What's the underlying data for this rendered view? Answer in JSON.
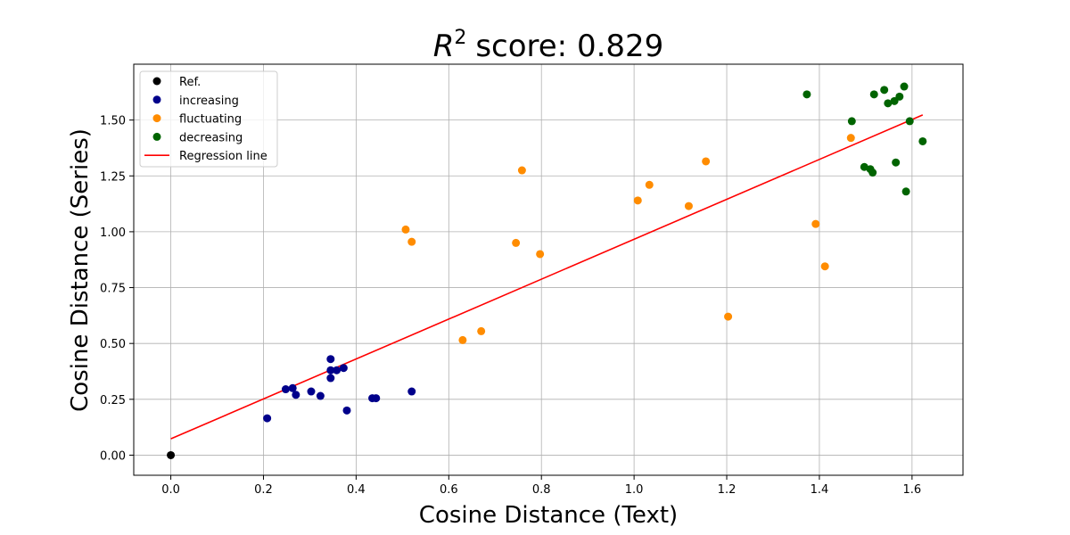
{
  "chart_data": {
    "type": "scatter",
    "title": "score: 0.829",
    "title_math": "R",
    "title_exponent": "2",
    "xlabel": "Cosine Distance (Text)",
    "ylabel": "Cosine Distance (Series)",
    "xlim": [
      -0.08,
      1.71
    ],
    "ylim": [
      -0.09,
      1.75
    ],
    "x_ticks": [
      "0.0",
      "0.2",
      "0.4",
      "0.6",
      "0.8",
      "1.0",
      "1.2",
      "1.4",
      "1.6"
    ],
    "y_ticks": [
      "0.00",
      "0.25",
      "0.50",
      "0.75",
      "1.00",
      "1.25",
      "1.50"
    ],
    "grid": true,
    "legend_position": "top-left",
    "series": [
      {
        "name": "Ref.",
        "color": "#000000",
        "points": [
          [
            0.0,
            0.0
          ]
        ]
      },
      {
        "name": "increasing",
        "color": "#00008b",
        "points": [
          [
            0.208,
            0.165
          ],
          [
            0.248,
            0.295
          ],
          [
            0.263,
            0.3
          ],
          [
            0.27,
            0.27
          ],
          [
            0.303,
            0.285
          ],
          [
            0.323,
            0.265
          ],
          [
            0.345,
            0.43
          ],
          [
            0.345,
            0.38
          ],
          [
            0.345,
            0.345
          ],
          [
            0.358,
            0.38
          ],
          [
            0.373,
            0.39
          ],
          [
            0.38,
            0.2
          ],
          [
            0.435,
            0.255
          ],
          [
            0.443,
            0.255
          ],
          [
            0.52,
            0.285
          ]
        ]
      },
      {
        "name": "fluctuating",
        "color": "#ff8c00",
        "points": [
          [
            0.507,
            1.01
          ],
          [
            0.52,
            0.955
          ],
          [
            0.63,
            0.515
          ],
          [
            0.67,
            0.555
          ],
          [
            0.745,
            0.95
          ],
          [
            0.758,
            1.275
          ],
          [
            0.797,
            0.9
          ],
          [
            1.008,
            1.14
          ],
          [
            1.033,
            1.21
          ],
          [
            1.118,
            1.115
          ],
          [
            1.155,
            1.315
          ],
          [
            1.203,
            0.62
          ],
          [
            1.392,
            1.035
          ],
          [
            1.412,
            0.845
          ],
          [
            1.468,
            1.42
          ]
        ]
      },
      {
        "name": "decreasing",
        "color": "#006400",
        "points": [
          [
            1.373,
            1.615
          ],
          [
            1.47,
            1.495
          ],
          [
            1.497,
            1.29
          ],
          [
            1.51,
            1.28
          ],
          [
            1.515,
            1.265
          ],
          [
            1.518,
            1.615
          ],
          [
            1.54,
            1.635
          ],
          [
            1.548,
            1.575
          ],
          [
            1.562,
            1.585
          ],
          [
            1.565,
            1.31
          ],
          [
            1.573,
            1.605
          ],
          [
            1.583,
            1.65
          ],
          [
            1.587,
            1.18
          ],
          [
            1.595,
            1.495
          ],
          [
            1.623,
            1.405
          ]
        ]
      }
    ],
    "regression_line": {
      "name": "Regression line",
      "color": "#ff0000",
      "x": [
        0.0,
        1.623
      ],
      "y": [
        0.073,
        1.523
      ]
    }
  }
}
